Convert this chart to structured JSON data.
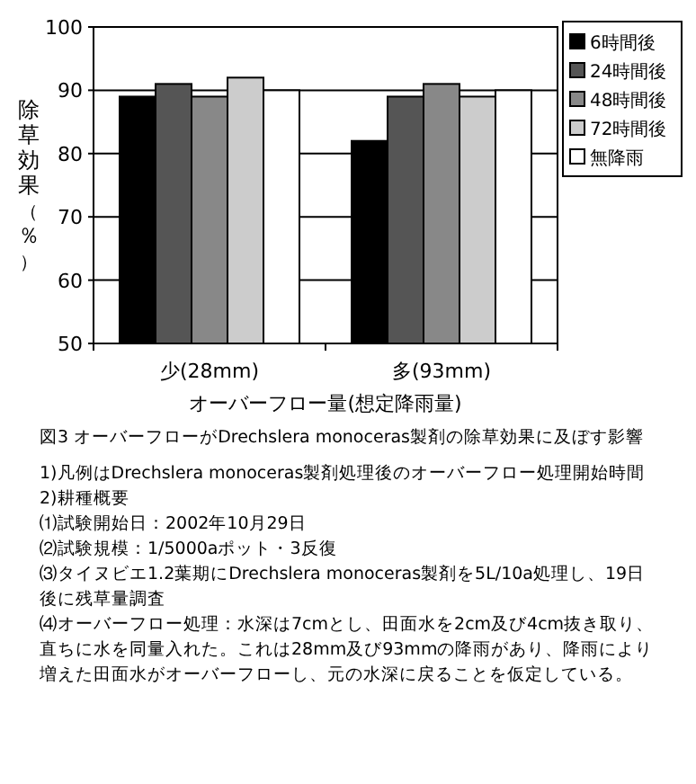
{
  "chart_data": {
    "type": "bar",
    "categories": [
      "少(28mm)",
      "多(93mm)"
    ],
    "xlabel": "オーバーフロー量(想定降雨量)",
    "ylabel": "除草効果（％）",
    "ylim": [
      50,
      100
    ],
    "yticks": [
      50,
      60,
      70,
      80,
      90,
      100
    ],
    "grid": "y",
    "legend": "top right",
    "series": [
      {
        "name": "6時間後",
        "color": "#000000",
        "values": [
          89,
          82
        ]
      },
      {
        "name": "24時間後",
        "color": "#555555",
        "values": [
          91,
          89
        ]
      },
      {
        "name": "48時間後",
        "color": "#888888",
        "values": [
          89,
          91
        ]
      },
      {
        "name": "72時間後",
        "color": "#cccccc",
        "values": [
          92,
          89
        ]
      },
      {
        "name": "無降雨",
        "color": "#ffffff",
        "values": [
          90,
          90
        ]
      }
    ],
    "annotations": [
      "図3 オーバーフローがDrechslera monoceras製剤の除草効果に及ぼす影響",
      "1)凡例はDrechslera monoceras製剤処理後のオーバーフロー処理開始時間",
      "2)耕種概要",
      "⑴試験開始日：2002年10月29日",
      "⑵試験規模：1/5000aポット・3反復",
      "⑶タイヌビエ1.2葉期にDrechslera monoceras製剤を5L/10a処理し、19日後に残草量調査",
      "⑷オーバーフロー処理：水深は7cmとし、田面水を2cm及び4cm抜き取り、直ちに水を同量入れた。これは28mm及び93mmの降雨があり、降雨により増えた田面水がオーバーフローし、元の水深に戻ることを仮定している。"
    ]
  }
}
